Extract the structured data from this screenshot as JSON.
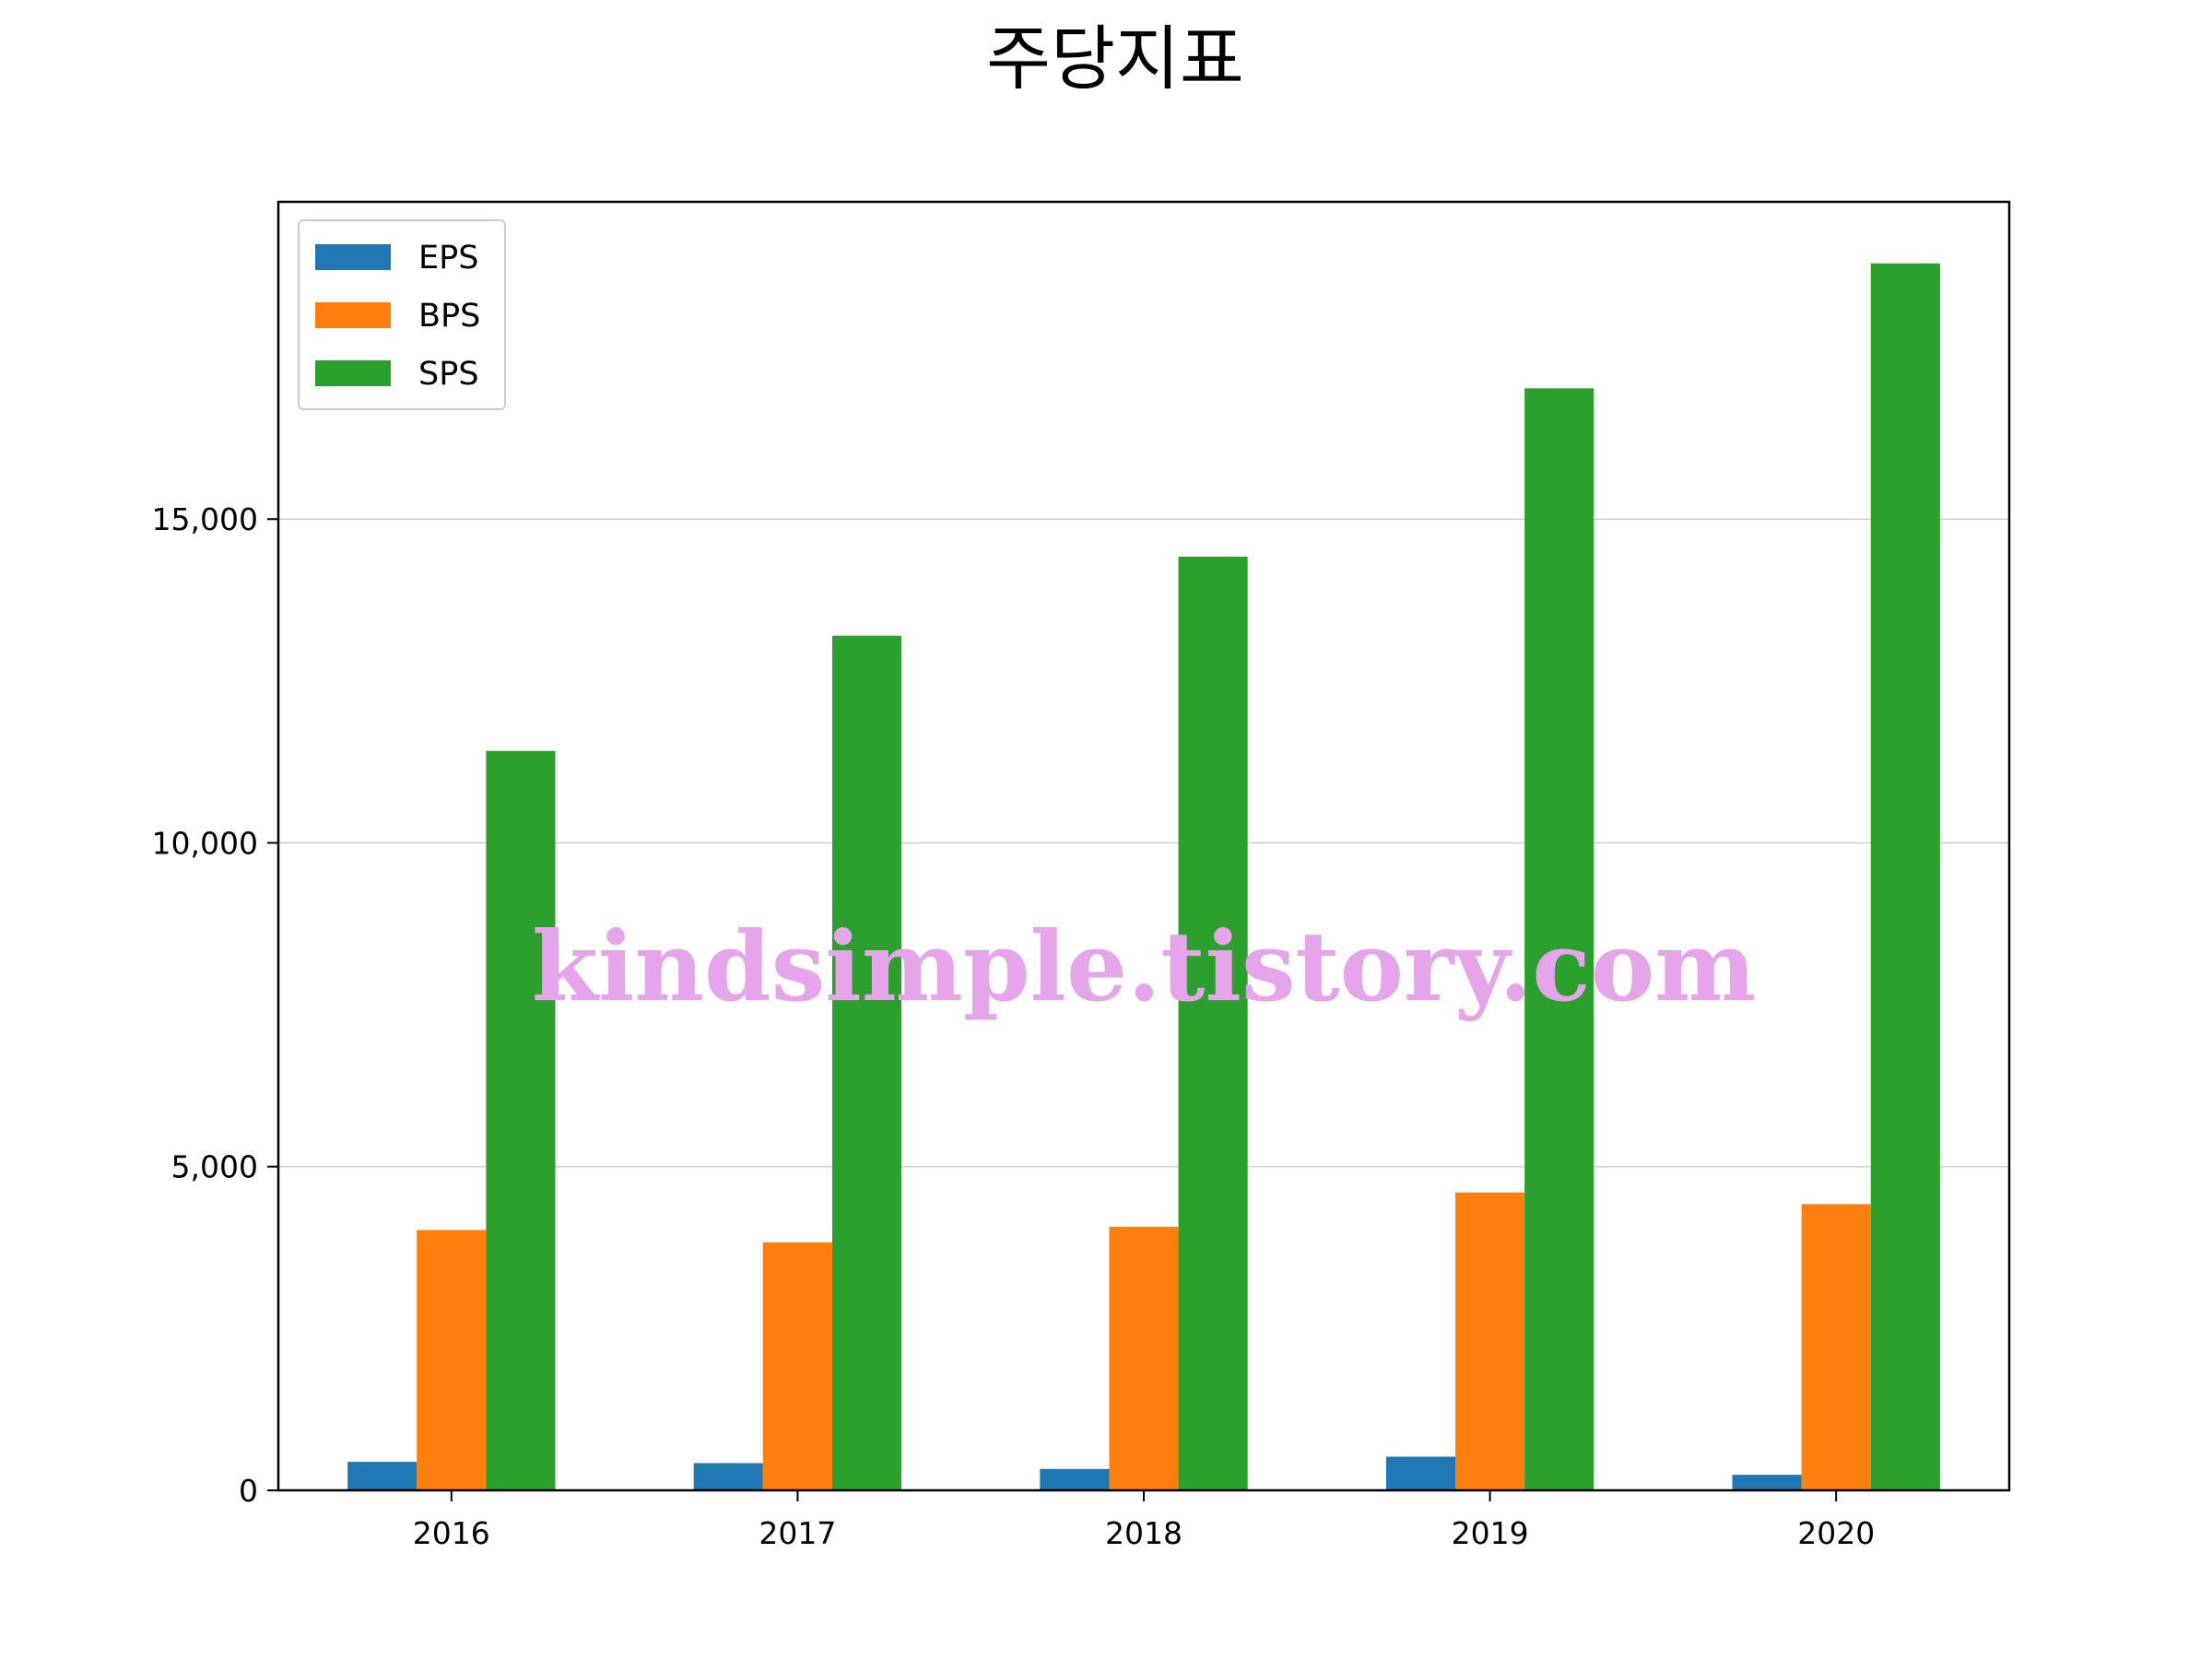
{
  "chart_data": {
    "type": "bar",
    "title": "주당지표",
    "xlabel": "",
    "ylabel": "",
    "categories": [
      "2016",
      "2017",
      "2018",
      "2019",
      "2020"
    ],
    "series": [
      {
        "name": "EPS",
        "color": "#1f77b4",
        "values": [
          440,
          420,
          330,
          520,
          240
        ]
      },
      {
        "name": "BPS",
        "color": "#ff7f0e",
        "values": [
          4020,
          3830,
          4070,
          4600,
          4420
        ]
      },
      {
        "name": "SPS",
        "color": "#2ca02c",
        "values": [
          11420,
          13200,
          14420,
          17020,
          18950
        ]
      }
    ],
    "ylim": [
      0,
      19900
    ],
    "yticks": [
      0,
      5000,
      10000,
      15000
    ],
    "ytick_labels": [
      "0",
      "5,000",
      "10,000",
      "15,000"
    ],
    "grid": "y",
    "legend_position": "top-left"
  },
  "watermark": "kindsimple.tistory.com"
}
